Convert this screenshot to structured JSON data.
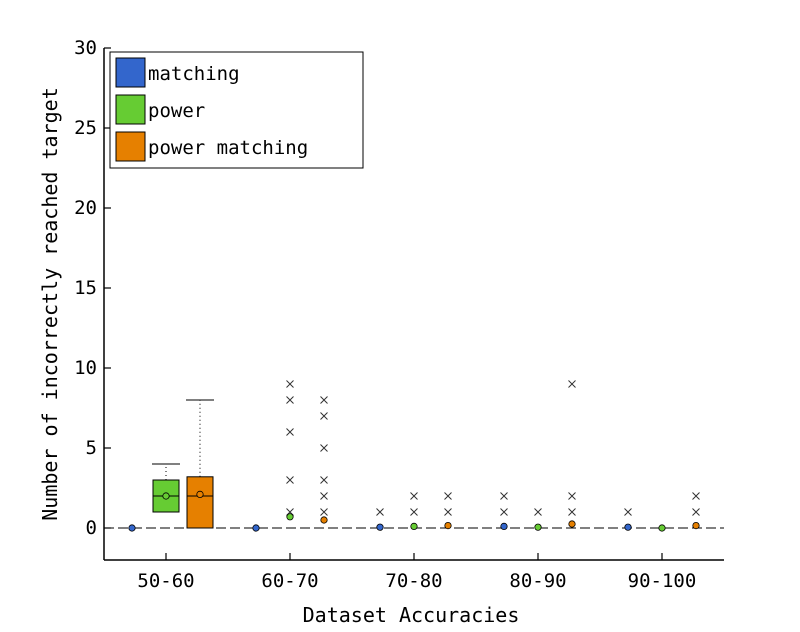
{
  "colors": {
    "matching": "#3366cc",
    "power": "#66cc33",
    "power matching": "#e68000",
    "outlier_marker": "#333333"
  },
  "chart_data": {
    "type": "box",
    "title": "",
    "xlabel": "Dataset Accuracies",
    "ylabel": "Number of incorrectly reached target",
    "ylim": [
      -2,
      30
    ],
    "yticks": [
      "0",
      "5",
      "10",
      "15",
      "20",
      "25",
      "30"
    ],
    "categories": [
      "50-60",
      "60-70",
      "70-80",
      "80-90",
      "90-100"
    ],
    "grid": false,
    "legend_position": "top-left",
    "legend": [
      {
        "key": "matching",
        "label": "matching"
      },
      {
        "key": "power",
        "label": "power"
      },
      {
        "key": "power matching",
        "label": "power matching"
      }
    ],
    "series": [
      {
        "name": "matching",
        "boxes": [
          {
            "q1": 0,
            "median": 0,
            "q3": 0,
            "whisker_low": 0,
            "whisker_high": 0,
            "mean": 0,
            "outliers": []
          },
          {
            "q1": 0,
            "median": 0,
            "q3": 0,
            "whisker_low": 0,
            "whisker_high": 0,
            "mean": 0,
            "outliers": []
          },
          {
            "q1": 0,
            "median": 0,
            "q3": 0,
            "whisker_low": 0,
            "whisker_high": 0,
            "mean": 0.05,
            "outliers": [
              1
            ]
          },
          {
            "q1": 0,
            "median": 0,
            "q3": 0,
            "whisker_low": 0,
            "whisker_high": 0,
            "mean": 0.1,
            "outliers": [
              1,
              2
            ]
          },
          {
            "q1": 0,
            "median": 0,
            "q3": 0,
            "whisker_low": 0,
            "whisker_high": 0,
            "mean": 0.05,
            "outliers": [
              1
            ]
          }
        ]
      },
      {
        "name": "power",
        "boxes": [
          {
            "q1": 1,
            "median": 2,
            "q3": 3,
            "whisker_low": 0,
            "whisker_high": 4,
            "mean": 2,
            "outliers": []
          },
          {
            "q1": 0,
            "median": 0,
            "q3": 0,
            "whisker_low": 0,
            "whisker_high": 0,
            "mean": 0.7,
            "outliers": [
              1,
              3,
              6,
              8,
              9
            ]
          },
          {
            "q1": 0,
            "median": 0,
            "q3": 0,
            "whisker_low": 0,
            "whisker_high": 0,
            "mean": 0.1,
            "outliers": [
              1,
              2
            ]
          },
          {
            "q1": 0,
            "median": 0,
            "q3": 0,
            "whisker_low": 0,
            "whisker_high": 0,
            "mean": 0.05,
            "outliers": [
              1
            ]
          },
          {
            "q1": 0,
            "median": 0,
            "q3": 0,
            "whisker_low": 0,
            "whisker_high": 0,
            "mean": 0,
            "outliers": []
          }
        ]
      },
      {
        "name": "power matching",
        "boxes": [
          {
            "q1": 0,
            "median": 2,
            "q3": 3.2,
            "whisker_low": 0,
            "whisker_high": 8,
            "mean": 2.1,
            "outliers": []
          },
          {
            "q1": 0,
            "median": 0,
            "q3": 0,
            "whisker_low": 0,
            "whisker_high": 0,
            "mean": 0.5,
            "outliers": [
              1,
              2,
              3,
              5,
              7,
              8
            ]
          },
          {
            "q1": 0,
            "median": 0,
            "q3": 0,
            "whisker_low": 0,
            "whisker_high": 0,
            "mean": 0.15,
            "outliers": [
              1,
              2
            ]
          },
          {
            "q1": 0,
            "median": 0,
            "q3": 0,
            "whisker_low": 0,
            "whisker_high": 0,
            "mean": 0.25,
            "outliers": [
              1,
              2,
              9
            ]
          },
          {
            "q1": 0,
            "median": 0,
            "q3": 0,
            "whisker_low": 0,
            "whisker_high": 0,
            "mean": 0.15,
            "outliers": [
              1,
              2
            ]
          }
        ]
      }
    ]
  }
}
